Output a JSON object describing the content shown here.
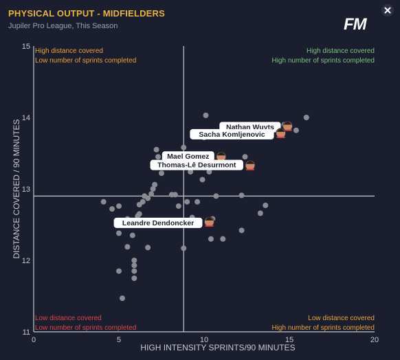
{
  "header": {
    "title": "PHYSICAL OUTPUT - MIDFIELDERS",
    "subtitle": "Jupiler Pro League, This Season",
    "logo": "FM",
    "close_icon": "close-icon"
  },
  "chart_data": {
    "type": "scatter",
    "title": "PHYSICAL OUTPUT - MIDFIELDERS",
    "xlabel": "HIGH INTENSITY SPRINTS/90 MINUTES",
    "ylabel": "DISTANCE COVERED / 90 MINUTES",
    "xlim": [
      0,
      20
    ],
    "ylim": [
      11,
      15
    ],
    "xticks": [
      0,
      5,
      10,
      15,
      20
    ],
    "yticks": [
      11,
      12,
      13,
      14,
      15
    ],
    "grid": false,
    "avg_x": 8.8,
    "avg_y": 12.9,
    "quadrant_labels": {
      "top_left": [
        "High distance covered",
        "Low number of sprints completed"
      ],
      "top_right": [
        "High distance covered",
        "High number of sprints completed"
      ],
      "bottom_left": [
        "Low distance covered",
        "Low number of sprints completed"
      ],
      "bottom_right": [
        "Low distance covered",
        "High number of sprints completed"
      ]
    },
    "quadrant_colors": {
      "top_left": "#e8a33a",
      "top_right": "#7bc47f",
      "bottom_left": "#e0454a",
      "bottom_right": "#e8a33a"
    },
    "highlighted": [
      {
        "name": "Nathan Wuyts",
        "x": 14.9,
        "y": 13.88
      },
      {
        "name": "Sacha Komljenovic",
        "x": 14.5,
        "y": 13.78
      },
      {
        "name": "Mael Gomez",
        "x": 11.0,
        "y": 13.45
      },
      {
        "name": "Thomas-Lê Desurmont",
        "x": 12.7,
        "y": 13.33
      },
      {
        "name": "Leandre Dendoncker",
        "x": 10.3,
        "y": 12.54
      }
    ],
    "points": [
      {
        "x": 10.1,
        "y": 14.03
      },
      {
        "x": 16.0,
        "y": 14.0
      },
      {
        "x": 15.4,
        "y": 13.82
      },
      {
        "x": 14.7,
        "y": 13.9
      },
      {
        "x": 10.0,
        "y": 13.72
      },
      {
        "x": 7.2,
        "y": 13.55
      },
      {
        "x": 8.8,
        "y": 13.58
      },
      {
        "x": 12.4,
        "y": 13.45
      },
      {
        "x": 7.3,
        "y": 13.45
      },
      {
        "x": 7.0,
        "y": 13.32
      },
      {
        "x": 7.9,
        "y": 13.32
      },
      {
        "x": 9.2,
        "y": 13.24
      },
      {
        "x": 10.3,
        "y": 13.24
      },
      {
        "x": 7.5,
        "y": 13.22
      },
      {
        "x": 9.9,
        "y": 13.13
      },
      {
        "x": 7.1,
        "y": 13.06
      },
      {
        "x": 7.0,
        "y": 13.0
      },
      {
        "x": 6.9,
        "y": 12.93
      },
      {
        "x": 8.1,
        "y": 12.92
      },
      {
        "x": 8.3,
        "y": 12.92
      },
      {
        "x": 6.5,
        "y": 12.9
      },
      {
        "x": 6.7,
        "y": 12.87
      },
      {
        "x": 10.7,
        "y": 12.9
      },
      {
        "x": 12.2,
        "y": 12.91
      },
      {
        "x": 4.1,
        "y": 12.82
      },
      {
        "x": 5.0,
        "y": 12.76
      },
      {
        "x": 4.6,
        "y": 12.72
      },
      {
        "x": 6.4,
        "y": 12.82
      },
      {
        "x": 6.2,
        "y": 12.78
      },
      {
        "x": 9.0,
        "y": 12.82
      },
      {
        "x": 8.5,
        "y": 12.76
      },
      {
        "x": 9.6,
        "y": 12.82
      },
      {
        "x": 9.3,
        "y": 12.6
      },
      {
        "x": 13.6,
        "y": 12.77
      },
      {
        "x": 13.3,
        "y": 12.66
      },
      {
        "x": 6.2,
        "y": 12.65
      },
      {
        "x": 6.1,
        "y": 12.62
      },
      {
        "x": 5.0,
        "y": 12.38
      },
      {
        "x": 5.5,
        "y": 12.58
      },
      {
        "x": 10.5,
        "y": 12.58
      },
      {
        "x": 12.2,
        "y": 12.42
      },
      {
        "x": 9.4,
        "y": 12.5
      },
      {
        "x": 5.8,
        "y": 12.35
      },
      {
        "x": 5.5,
        "y": 12.19
      },
      {
        "x": 6.7,
        "y": 12.18
      },
      {
        "x": 8.8,
        "y": 12.17
      },
      {
        "x": 10.4,
        "y": 12.3
      },
      {
        "x": 11.1,
        "y": 12.3
      },
      {
        "x": 5.9,
        "y": 12.0
      },
      {
        "x": 5.9,
        "y": 11.93
      },
      {
        "x": 5.9,
        "y": 11.85
      },
      {
        "x": 5.0,
        "y": 11.85
      },
      {
        "x": 5.9,
        "y": 11.75
      },
      {
        "x": 5.2,
        "y": 11.47
      }
    ]
  },
  "colors": {
    "background": "#1b1e2e",
    "point": "#8a8c94",
    "axis_line": "#c8cad0",
    "label_bg": "#ffffff",
    "label_text": "#1b1e2e",
    "title": "#e8b53a"
  }
}
